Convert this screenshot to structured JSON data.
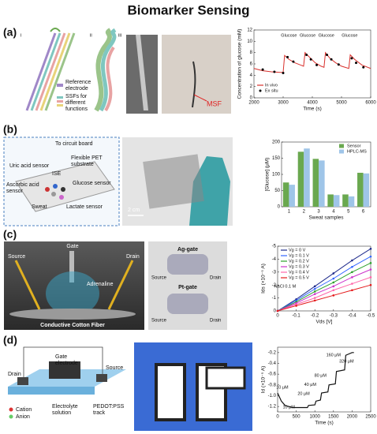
{
  "title": "Biomarker Sensing",
  "panels": [
    {
      "label": "(a)",
      "labels": [
        "i",
        "ii",
        "iii",
        "Reference",
        "electrode",
        "SSFs for",
        "different",
        "functions",
        "MSF"
      ],
      "chart": {
        "type": "line",
        "x_label": "Time (s)",
        "y_label": "Concentration of glucose (mM)",
        "xlim": [
          2000,
          6000
        ],
        "xticks": [
          2000,
          3000,
          4000,
          5000,
          6000
        ],
        "ylim": [
          0,
          12
        ],
        "yticks": [
          0,
          2,
          4,
          6,
          8,
          10,
          12
        ],
        "legend": "lower left",
        "annotations": [
          "Glucose",
          "Glucose",
          "Glucose",
          "Glucose"
        ],
        "series": [
          {
            "name": "In vivo",
            "color": "#d9302c",
            "x": [
              2000,
              2300,
              2600,
              2900,
              3000,
              3050,
              3200,
              3400,
              3600,
              3700,
              3750,
              3900,
              4100,
              4300,
              4400,
              4450,
              4600,
              4800,
              5000,
              5250,
              5300,
              5450,
              5700,
              6000
            ],
            "values": [
              5.2,
              4.8,
              4.6,
              4.5,
              4.5,
              7.5,
              6.8,
              6.2,
              5.8,
              5.6,
              8.0,
              7.2,
              6.2,
              5.6,
              5.4,
              8.0,
              7.0,
              6.2,
              5.6,
              5.2,
              7.6,
              6.8,
              5.8,
              5.2
            ]
          },
          {
            "name": "Ex situ",
            "color": "#000000",
            "marker": "dot",
            "x": [
              2300,
              2700,
              3000,
              3150,
              3350,
              3800,
              3950,
              4150,
              4500,
              4650,
              4900,
              5350,
              5500,
              5750
            ],
            "values": [
              5.0,
              4.6,
              4.4,
              7.2,
              6.4,
              7.6,
              6.8,
              5.8,
              7.6,
              6.8,
              5.9,
              7.0,
              6.2,
              5.4
            ]
          }
        ]
      }
    },
    {
      "label": "(b)",
      "labels": [
        "To circuit board",
        "Flexible PET",
        "substrate",
        "Uric acid sensor",
        "ISE",
        "Ascorbic acid",
        "sensor",
        "Glucose sensor",
        "Sweat",
        "Lactate sensor",
        "2 cm"
      ],
      "chart": {
        "type": "bar",
        "x_label": "Sweat samples",
        "y_label": "[Glucose] (μM)",
        "categories": [
          "1",
          "2",
          "3",
          "4",
          "5",
          "6"
        ],
        "ylim": [
          0,
          200
        ],
        "yticks": [
          0,
          50,
          100,
          150,
          200
        ],
        "legend": "upper right",
        "series": [
          {
            "name": "Sensor",
            "color": "#6aa84f",
            "values": [
              75,
              170,
              148,
              38,
              38,
              105
            ]
          },
          {
            "name": "HPLC-MS",
            "color": "#9fc5e8",
            "values": [
              68,
              180,
              143,
              36,
              32,
              103
            ]
          }
        ]
      }
    },
    {
      "label": "(c)",
      "labels": [
        "Gate",
        "Source",
        "Drain",
        "Adrenaline",
        "Conductive Cotton Fiber",
        "Ag-gate",
        "Pt-gate",
        "Source",
        "Drain",
        "Source",
        "Drain"
      ],
      "chart": {
        "type": "line",
        "x_label": "Vds [V]",
        "y_label": "Ids (×10⁻⁵ A)",
        "xlim": [
          0,
          -0.5
        ],
        "xticks": [
          0,
          -0.1,
          -0.2,
          -0.3,
          -0.4,
          -0.5
        ],
        "ylim": [
          0,
          -5
        ],
        "yticks": [
          0,
          -1,
          -2,
          -3,
          -4,
          -5
        ],
        "legend": "upper left",
        "annotations": [
          "NaCl 0.1 M"
        ],
        "markers": true,
        "x": [
          0,
          -0.1,
          -0.2,
          -0.3,
          -0.4,
          -0.5
        ],
        "series": [
          {
            "name": "Vg = 0 V",
            "color": "#1f2b8c",
            "values": [
              0,
              -0.9,
              -1.9,
              -2.9,
              -3.9,
              -4.8
            ]
          },
          {
            "name": "Vg = 0.1 V",
            "color": "#3366ff",
            "values": [
              0,
              -0.8,
              -1.7,
              -2.5,
              -3.4,
              -4.2
            ]
          },
          {
            "name": "Vg = 0.2 V",
            "color": "#2ca02c",
            "values": [
              0,
              -0.7,
              -1.5,
              -2.2,
              -3.0,
              -3.7
            ]
          },
          {
            "name": "Vg = 0.3 V",
            "color": "#cc33cc",
            "values": [
              0,
              -0.6,
              -1.3,
              -1.9,
              -2.6,
              -3.2
            ]
          },
          {
            "name": "Vg = 0.4 V",
            "color": "#ff66aa",
            "values": [
              0,
              -0.5,
              -1.0,
              -1.6,
              -2.1,
              -2.6
            ]
          },
          {
            "name": "Vg = 0.5 V",
            "color": "#e41a1c",
            "values": [
              0,
              -0.4,
              -0.8,
              -1.2,
              -1.6,
              -2.0
            ]
          }
        ]
      }
    },
    {
      "label": "(d)",
      "labels": [
        "Gate",
        "electrode",
        "Drain",
        "Source",
        "Cation",
        "Anion",
        "Electrolyte",
        "solution",
        "PEDOT:PSS",
        "track"
      ],
      "chart": {
        "type": "line",
        "x_label": "Time (s)",
        "y_label": "Id (×10⁻⁵ A)",
        "xlim": [
          0,
          2500
        ],
        "xticks": [
          0,
          500,
          1000,
          1500,
          2000,
          2500
        ],
        "ylim": [
          -1.3,
          -0.1
        ],
        "yticks": [
          -1.2,
          {
            "value": -1,
            "label": "-1.0"
          },
          -0.8,
          -0.6,
          -0.4,
          -0.2
        ],
        "annotations": [
          "10 μM",
          "10 μM",
          "20 μM",
          "40 μM",
          "80 μM",
          "160 μM",
          "320 μM"
        ],
        "color": "#111111",
        "x": [
          0,
          100,
          200,
          400,
          600,
          800,
          830,
          1000,
          1030,
          1150,
          1180,
          1350,
          1380,
          1550,
          1580,
          1800,
          1830,
          2000,
          2050
        ],
        "values": [
          -0.95,
          -1.1,
          -1.18,
          -1.22,
          -1.22,
          -1.22,
          -1.18,
          -1.17,
          -1.1,
          -1.08,
          -0.95,
          -0.93,
          -0.8,
          -0.78,
          -0.55,
          -0.52,
          -0.25,
          -0.2,
          -0.2
        ]
      }
    }
  ]
}
